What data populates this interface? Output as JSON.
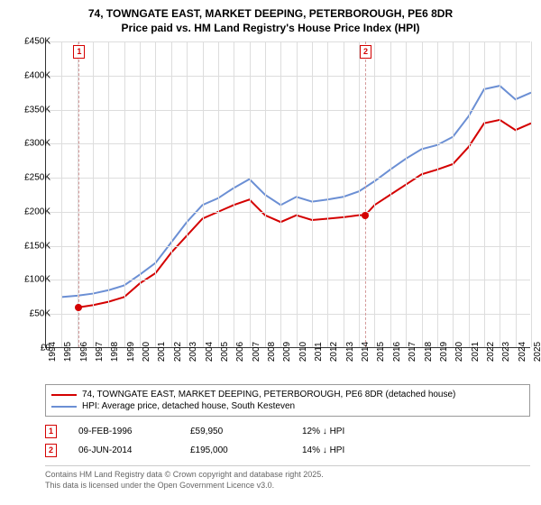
{
  "title_line1": "74, TOWNGATE EAST, MARKET DEEPING, PETERBOROUGH, PE6 8DR",
  "title_line2": "Price paid vs. HM Land Registry's House Price Index (HPI)",
  "chart": {
    "type": "line",
    "background_color": "#ffffff",
    "grid_color": "#dddddd",
    "axis_color": "#333333",
    "ylim": [
      0,
      450000
    ],
    "ytick_step": 50000,
    "yticks": [
      "£0",
      "£50K",
      "£100K",
      "£150K",
      "£200K",
      "£250K",
      "£300K",
      "£350K",
      "£400K",
      "£450K"
    ],
    "xlim": [
      1994,
      2025
    ],
    "xticks": [
      "1994",
      "1995",
      "1996",
      "1997",
      "1998",
      "1999",
      "2000",
      "2001",
      "2002",
      "2003",
      "2004",
      "2005",
      "2006",
      "2007",
      "2008",
      "2009",
      "2010",
      "2011",
      "2012",
      "2013",
      "2014",
      "2015",
      "2016",
      "2017",
      "2018",
      "2019",
      "2020",
      "2021",
      "2022",
      "2023",
      "2024",
      "2025"
    ],
    "line_width": 2,
    "series": [
      {
        "name": "property",
        "color": "#d40000",
        "label": "74, TOWNGATE EAST, MARKET DEEPING, PETERBOROUGH, PE6 8DR (detached house)",
        "points": [
          [
            1996.1,
            59950
          ],
          [
            1997,
            63000
          ],
          [
            1998,
            68000
          ],
          [
            1999,
            75000
          ],
          [
            2000,
            95000
          ],
          [
            2001,
            110000
          ],
          [
            2002,
            140000
          ],
          [
            2003,
            165000
          ],
          [
            2004,
            190000
          ],
          [
            2005,
            200000
          ],
          [
            2006,
            210000
          ],
          [
            2007,
            218000
          ],
          [
            2008,
            195000
          ],
          [
            2009,
            185000
          ],
          [
            2010,
            195000
          ],
          [
            2011,
            188000
          ],
          [
            2012,
            190000
          ],
          [
            2013,
            192000
          ],
          [
            2014,
            195000
          ],
          [
            2014.4,
            195000
          ],
          [
            2015,
            210000
          ],
          [
            2016,
            225000
          ],
          [
            2017,
            240000
          ],
          [
            2018,
            255000
          ],
          [
            2019,
            262000
          ],
          [
            2020,
            270000
          ],
          [
            2021,
            295000
          ],
          [
            2022,
            330000
          ],
          [
            2023,
            335000
          ],
          [
            2024,
            320000
          ],
          [
            2025,
            330000
          ]
        ]
      },
      {
        "name": "hpi",
        "color": "#6b8fd4",
        "label": "HPI: Average price, detached house, South Kesteven",
        "points": [
          [
            1995,
            75000
          ],
          [
            1996,
            77000
          ],
          [
            1997,
            80000
          ],
          [
            1998,
            85000
          ],
          [
            1999,
            92000
          ],
          [
            2000,
            108000
          ],
          [
            2001,
            125000
          ],
          [
            2002,
            155000
          ],
          [
            2003,
            185000
          ],
          [
            2004,
            210000
          ],
          [
            2005,
            220000
          ],
          [
            2006,
            235000
          ],
          [
            2007,
            248000
          ],
          [
            2008,
            225000
          ],
          [
            2009,
            210000
          ],
          [
            2010,
            222000
          ],
          [
            2011,
            215000
          ],
          [
            2012,
            218000
          ],
          [
            2013,
            222000
          ],
          [
            2014,
            230000
          ],
          [
            2015,
            245000
          ],
          [
            2016,
            262000
          ],
          [
            2017,
            278000
          ],
          [
            2018,
            292000
          ],
          [
            2019,
            298000
          ],
          [
            2020,
            310000
          ],
          [
            2021,
            340000
          ],
          [
            2022,
            380000
          ],
          [
            2023,
            385000
          ],
          [
            2024,
            365000
          ],
          [
            2025,
            375000
          ]
        ]
      }
    ],
    "markers": [
      {
        "num": "1",
        "x": 1996.1,
        "y": 59950,
        "color": "#d40000"
      },
      {
        "num": "2",
        "x": 2014.4,
        "y": 195000,
        "color": "#d40000"
      }
    ],
    "marker_line_color": "#d49a9a",
    "marker_box_border": "#d40000",
    "marker_box_text": "#d40000",
    "point_fill": "#d40000"
  },
  "sales": [
    {
      "num": "1",
      "date": "09-FEB-1996",
      "price": "£59,950",
      "delta": "12% ↓ HPI"
    },
    {
      "num": "2",
      "date": "06-JUN-2014",
      "price": "£195,000",
      "delta": "14% ↓ HPI"
    }
  ],
  "footer_line1": "Contains HM Land Registry data © Crown copyright and database right 2025.",
  "footer_line2": "This data is licensed under the Open Government Licence v3.0."
}
